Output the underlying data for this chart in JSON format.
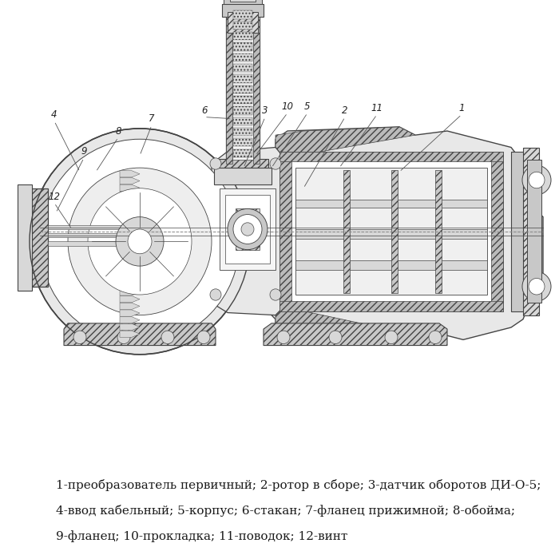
{
  "background_color": "#ffffff",
  "caption_line1": "1-преобразователь первичный; 2-ротор в сборе; 3-датчик оборотов ДИ-О-5;",
  "caption_line2": "4-ввод кабельный; 5-корпус; 6-стакан; 7-фланец прижимной; 8-обойма;",
  "caption_line3": "9-фланец; 10-прокладка; 11-поводок; 12-винт",
  "caption_fontsize": 11,
  "caption_color": "#1a1a1a",
  "fig_width": 7.0,
  "fig_height": 7.0,
  "dpi": 100
}
